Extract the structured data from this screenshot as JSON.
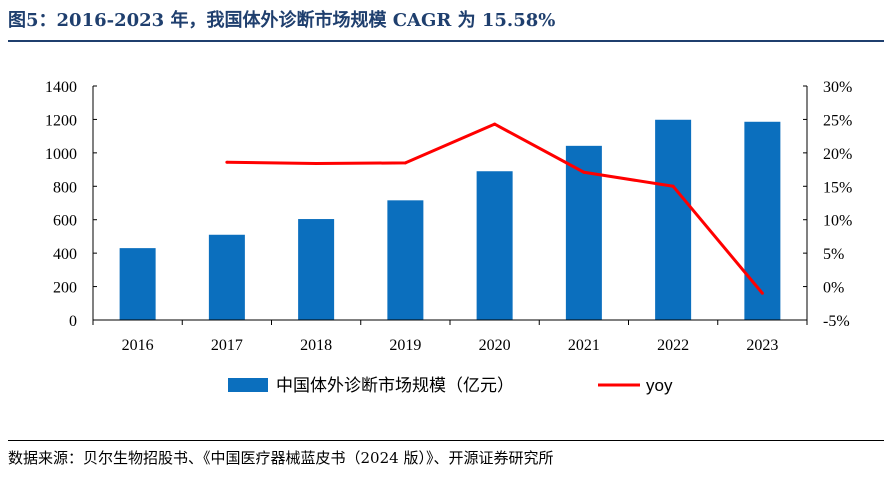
{
  "figure": {
    "title": "图5：2016-2023 年，我国体外诊断市场规模 CAGR 为 15.58%",
    "source": "数据来源：贝尔生物招股书、《中国医疗器械蓝皮书（2024 版）》、开源证券研究所"
  },
  "chart_data": {
    "type": "bar",
    "title": "",
    "categories": [
      "2016",
      "2017",
      "2018",
      "2019",
      "2020",
      "2021",
      "2022",
      "2023"
    ],
    "series": [
      {
        "name": "中国体外诊断市场规模（亿元）",
        "type": "bar",
        "axis": "left",
        "color": "#0b6fbe",
        "values": [
          430,
          510,
          604,
          716,
          890,
          1042,
          1198,
          1186
        ]
      },
      {
        "name": "yoy",
        "type": "line",
        "axis": "right",
        "color": "#ff0000",
        "values": [
          null,
          18.6,
          18.4,
          18.5,
          24.3,
          17.1,
          15.0,
          -1.0
        ]
      }
    ],
    "left_axis": {
      "ylim": [
        0,
        1400
      ],
      "ticks": [
        "0",
        "200",
        "400",
        "600",
        "800",
        "1000",
        "1200",
        "1400"
      ]
    },
    "right_axis": {
      "ylim": [
        -5,
        30
      ],
      "ticks": [
        "-5%",
        "0%",
        "5%",
        "10%",
        "15%",
        "20%",
        "25%",
        "30%"
      ]
    },
    "legend_position": "bottom",
    "grid": false
  }
}
